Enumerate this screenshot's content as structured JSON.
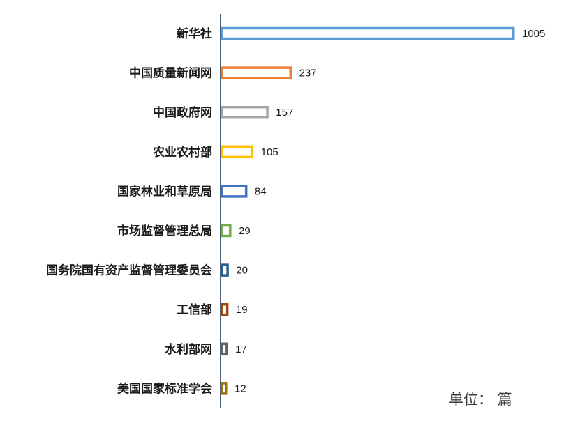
{
  "chart_data": {
    "type": "bar",
    "orientation": "horizontal",
    "categories": [
      "新华社",
      "中国质量新闻网",
      "中国政府网",
      "农业农村部",
      "国家林业和草原局",
      "市场监督管理总局",
      "国务院国有资产监督管理委员会",
      "工信部",
      "水利部网",
      "美国国家标准学会"
    ],
    "values": [
      1005,
      237,
      157,
      105,
      84,
      29,
      20,
      19,
      17,
      12
    ],
    "value_labels": [
      "1005",
      "237",
      "157",
      "105",
      "84",
      "29",
      "20",
      "19",
      "17",
      "12"
    ],
    "colors": [
      "#5b9bd5",
      "#ed7d31",
      "#a5a5a5",
      "#ffc000",
      "#4472c4",
      "#70ad47",
      "#255e91",
      "#9e480e",
      "#636363",
      "#997300"
    ],
    "bar_style": "outlined",
    "unit_label": "单位： 篇",
    "xlim": [
      0,
      1005
    ],
    "grid": false,
    "legend": "none"
  }
}
